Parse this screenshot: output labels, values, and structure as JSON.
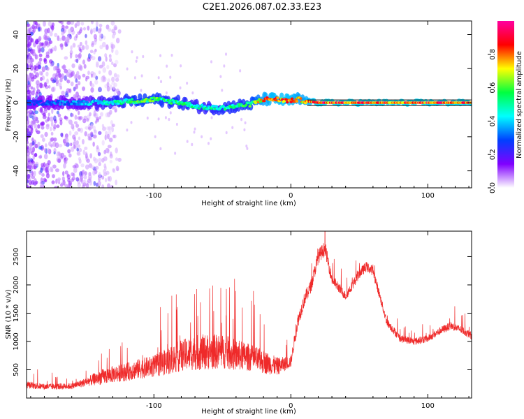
{
  "title": "C2E1.2026.087.02.33.E23",
  "colors": {
    "snr_line": "#ef2a2a",
    "carrier_line": "#000000",
    "axis": "#000000",
    "background": "#ffffff"
  },
  "chart_data": [
    {
      "type": "heatmap",
      "name": "spectrogram",
      "xlabel": "Height of straight line (km)",
      "ylabel": "Frequency (Hz)",
      "xlim": [
        -193,
        132
      ],
      "ylim": [
        -50,
        48
      ],
      "x_ticks": [
        -100,
        0,
        100
      ],
      "x_tick_labels": [
        "-100",
        "0",
        "100"
      ],
      "y_ticks": [
        -40,
        -20,
        0,
        20,
        40
      ],
      "y_tick_labels": [
        "-40",
        "-20",
        "0",
        "20",
        "40"
      ],
      "colorbar": {
        "label": "Normalized spectral amplitude",
        "range": [
          0,
          1
        ],
        "ticks": [
          0.0,
          0.2,
          0.4,
          0.6,
          0.8
        ],
        "tick_labels": [
          "0.0",
          "0.2",
          "0.4",
          "0.6",
          "0.8"
        ],
        "stops": [
          "#ffffff",
          "#8000ff",
          "#0040ff",
          "#00ffff",
          "#00ff40",
          "#ffff00",
          "#ff0000",
          "#ff00a0"
        ]
      },
      "carrier_track": {
        "x": [
          -190,
          -180,
          -170,
          -160,
          -150,
          -140,
          -130,
          -120,
          -110,
          -100,
          -90,
          -80,
          -70,
          -60,
          -50,
          -40,
          -30,
          -20,
          -10,
          0,
          5,
          10,
          20,
          40,
          60,
          80,
          100,
          120,
          132
        ],
        "freq": [
          0,
          0,
          0,
          0,
          0,
          0,
          0,
          1,
          1,
          2,
          1,
          0,
          -2,
          -3,
          -3,
          -2,
          -1,
          2,
          2,
          1,
          2,
          1,
          0,
          0,
          0,
          0,
          0,
          0,
          0
        ],
        "amplitude": [
          0.3,
          0.3,
          0.35,
          0.35,
          0.4,
          0.45,
          0.5,
          0.55,
          0.6,
          0.6,
          0.55,
          0.55,
          0.5,
          0.5,
          0.55,
          0.55,
          0.6,
          0.8,
          0.85,
          0.85,
          0.8,
          0.8,
          0.9,
          0.9,
          0.9,
          0.9,
          0.9,
          0.9,
          0.9
        ]
      },
      "scatter_region": {
        "x_range": [
          -193,
          -125
        ],
        "freq_range": [
          -50,
          48
        ],
        "amplitude": 0.12
      }
    },
    {
      "type": "line",
      "name": "snr",
      "xlabel": "Height of straight line (km)",
      "ylabel": "SNR (10 * v/v)",
      "xlim": [
        -193,
        132
      ],
      "ylim": [
        0,
        2950
      ],
      "x_ticks": [
        -100,
        0,
        100
      ],
      "x_tick_labels": [
        "-100",
        "0",
        "100"
      ],
      "y_ticks": [
        500,
        1000,
        1500,
        2000,
        2500
      ],
      "y_tick_labels": [
        "500",
        "1000",
        "1500",
        "2000",
        "2500"
      ],
      "series": [
        {
          "name": "SNR",
          "x": [
            -193,
            -180,
            -160,
            -150,
            -140,
            -130,
            -120,
            -110,
            -100,
            -90,
            -80,
            -70,
            -60,
            -50,
            -40,
            -30,
            -20,
            -10,
            -5,
            0,
            5,
            10,
            15,
            20,
            25,
            30,
            40,
            50,
            55,
            60,
            65,
            70,
            80,
            90,
            100,
            110,
            117,
            125,
            132
          ],
          "y": [
            230,
            200,
            210,
            280,
            360,
            420,
            460,
            520,
            560,
            650,
            750,
            800,
            820,
            820,
            760,
            720,
            640,
            560,
            600,
            640,
            1350,
            1750,
            2000,
            2500,
            2650,
            2100,
            1800,
            2200,
            2320,
            2250,
            1800,
            1350,
            1050,
            1000,
            1050,
            1200,
            1280,
            1200,
            1100
          ],
          "noise": [
            120,
            110,
            110,
            150,
            260,
            300,
            320,
            360,
            380,
            480,
            560,
            620,
            640,
            600,
            560,
            480,
            420,
            320,
            260,
            200,
            260,
            240,
            240,
            260,
            260,
            200,
            160,
            180,
            180,
            180,
            160,
            150,
            130,
            130,
            130,
            140,
            140,
            140,
            140
          ]
        }
      ]
    }
  ]
}
